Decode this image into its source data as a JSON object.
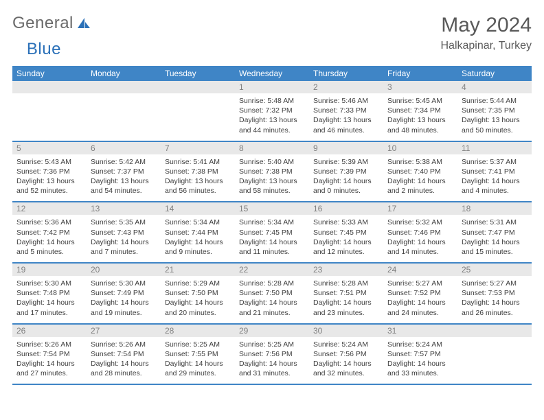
{
  "brand": {
    "part1": "General",
    "part2": "Blue"
  },
  "title": {
    "month": "May 2024",
    "location": "Halkapinar, Turkey"
  },
  "colors": {
    "header_bg": "#3f85c6",
    "header_text": "#ffffff",
    "daynum_bg": "#e8e8e8",
    "daynum_text": "#808080",
    "body_text": "#404040",
    "rule": "#3f85c6"
  },
  "weekdays": [
    "Sunday",
    "Monday",
    "Tuesday",
    "Wednesday",
    "Thursday",
    "Friday",
    "Saturday"
  ],
  "weeks": [
    [
      {
        "n": "",
        "sr": "",
        "ss": "",
        "dl": ""
      },
      {
        "n": "",
        "sr": "",
        "ss": "",
        "dl": ""
      },
      {
        "n": "",
        "sr": "",
        "ss": "",
        "dl": ""
      },
      {
        "n": "1",
        "sr": "5:48 AM",
        "ss": "7:32 PM",
        "dl": "13 hours and 44 minutes."
      },
      {
        "n": "2",
        "sr": "5:46 AM",
        "ss": "7:33 PM",
        "dl": "13 hours and 46 minutes."
      },
      {
        "n": "3",
        "sr": "5:45 AM",
        "ss": "7:34 PM",
        "dl": "13 hours and 48 minutes."
      },
      {
        "n": "4",
        "sr": "5:44 AM",
        "ss": "7:35 PM",
        "dl": "13 hours and 50 minutes."
      }
    ],
    [
      {
        "n": "5",
        "sr": "5:43 AM",
        "ss": "7:36 PM",
        "dl": "13 hours and 52 minutes."
      },
      {
        "n": "6",
        "sr": "5:42 AM",
        "ss": "7:37 PM",
        "dl": "13 hours and 54 minutes."
      },
      {
        "n": "7",
        "sr": "5:41 AM",
        "ss": "7:38 PM",
        "dl": "13 hours and 56 minutes."
      },
      {
        "n": "8",
        "sr": "5:40 AM",
        "ss": "7:38 PM",
        "dl": "13 hours and 58 minutes."
      },
      {
        "n": "9",
        "sr": "5:39 AM",
        "ss": "7:39 PM",
        "dl": "14 hours and 0 minutes."
      },
      {
        "n": "10",
        "sr": "5:38 AM",
        "ss": "7:40 PM",
        "dl": "14 hours and 2 minutes."
      },
      {
        "n": "11",
        "sr": "5:37 AM",
        "ss": "7:41 PM",
        "dl": "14 hours and 4 minutes."
      }
    ],
    [
      {
        "n": "12",
        "sr": "5:36 AM",
        "ss": "7:42 PM",
        "dl": "14 hours and 5 minutes."
      },
      {
        "n": "13",
        "sr": "5:35 AM",
        "ss": "7:43 PM",
        "dl": "14 hours and 7 minutes."
      },
      {
        "n": "14",
        "sr": "5:34 AM",
        "ss": "7:44 PM",
        "dl": "14 hours and 9 minutes."
      },
      {
        "n": "15",
        "sr": "5:34 AM",
        "ss": "7:45 PM",
        "dl": "14 hours and 11 minutes."
      },
      {
        "n": "16",
        "sr": "5:33 AM",
        "ss": "7:45 PM",
        "dl": "14 hours and 12 minutes."
      },
      {
        "n": "17",
        "sr": "5:32 AM",
        "ss": "7:46 PM",
        "dl": "14 hours and 14 minutes."
      },
      {
        "n": "18",
        "sr": "5:31 AM",
        "ss": "7:47 PM",
        "dl": "14 hours and 15 minutes."
      }
    ],
    [
      {
        "n": "19",
        "sr": "5:30 AM",
        "ss": "7:48 PM",
        "dl": "14 hours and 17 minutes."
      },
      {
        "n": "20",
        "sr": "5:30 AM",
        "ss": "7:49 PM",
        "dl": "14 hours and 19 minutes."
      },
      {
        "n": "21",
        "sr": "5:29 AM",
        "ss": "7:50 PM",
        "dl": "14 hours and 20 minutes."
      },
      {
        "n": "22",
        "sr": "5:28 AM",
        "ss": "7:50 PM",
        "dl": "14 hours and 21 minutes."
      },
      {
        "n": "23",
        "sr": "5:28 AM",
        "ss": "7:51 PM",
        "dl": "14 hours and 23 minutes."
      },
      {
        "n": "24",
        "sr": "5:27 AM",
        "ss": "7:52 PM",
        "dl": "14 hours and 24 minutes."
      },
      {
        "n": "25",
        "sr": "5:27 AM",
        "ss": "7:53 PM",
        "dl": "14 hours and 26 minutes."
      }
    ],
    [
      {
        "n": "26",
        "sr": "5:26 AM",
        "ss": "7:54 PM",
        "dl": "14 hours and 27 minutes."
      },
      {
        "n": "27",
        "sr": "5:26 AM",
        "ss": "7:54 PM",
        "dl": "14 hours and 28 minutes."
      },
      {
        "n": "28",
        "sr": "5:25 AM",
        "ss": "7:55 PM",
        "dl": "14 hours and 29 minutes."
      },
      {
        "n": "29",
        "sr": "5:25 AM",
        "ss": "7:56 PM",
        "dl": "14 hours and 31 minutes."
      },
      {
        "n": "30",
        "sr": "5:24 AM",
        "ss": "7:56 PM",
        "dl": "14 hours and 32 minutes."
      },
      {
        "n": "31",
        "sr": "5:24 AM",
        "ss": "7:57 PM",
        "dl": "14 hours and 33 minutes."
      },
      {
        "n": "",
        "sr": "",
        "ss": "",
        "dl": ""
      }
    ]
  ],
  "labels": {
    "sunrise": "Sunrise:",
    "sunset": "Sunset:",
    "daylight": "Daylight:"
  }
}
